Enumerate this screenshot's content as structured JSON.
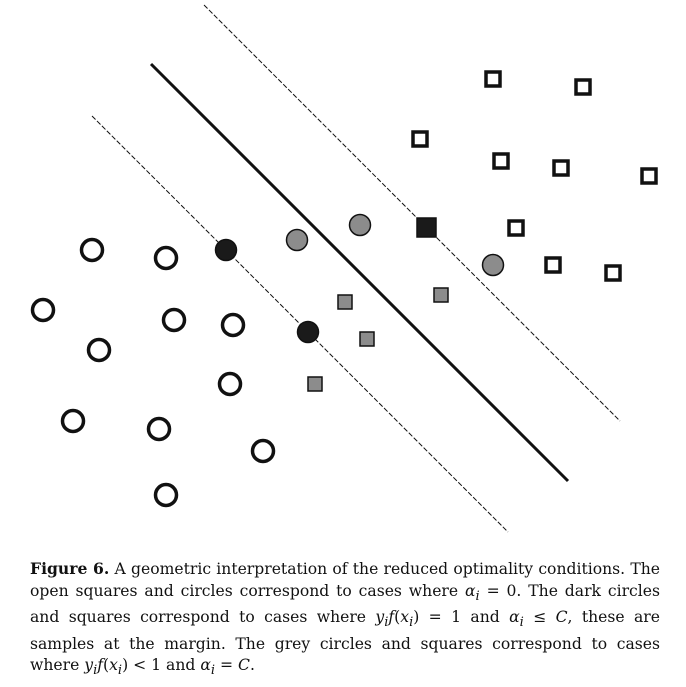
{
  "figure": {
    "colors": {
      "open": "#ffffff",
      "stroke": "#111111",
      "dark": "#1a1a1a",
      "grey": "#8c8c8c"
    },
    "legend_semantics": {
      "open": "alpha_i = 0",
      "dark": "margin samples, y_i f(x_i) = 1",
      "grey": "y_i f(x_i) < 1, alpha_i = C"
    }
  },
  "caption": {
    "label": "Figure 6.",
    "s1": " A geometric interpretation of the reduced optimality conditions. The open squares and circles correspond to cases where ",
    "m1": "α",
    "m1sub": "i",
    "s2": " = 0. The dark circles and squares correspond to cases where ",
    "m2": "y",
    "m2sub": "i",
    "m2b": "f",
    "m2c": "(",
    "m2d": "x",
    "m2dsub": "i",
    "m2e": ") = 1 and ",
    "m3": "α",
    "m3sub": "i",
    "m3b": " ≤ ",
    "m3c": "C",
    "s3": ", these are samples at the margin. The grey circles and squares correspond to cases where ",
    "m4": "y",
    "m4sub": "i",
    "m4b": "f",
    "m4c": "(",
    "m4d": "x",
    "m4dsub": "i",
    "m4e": ") < 1 and ",
    "m5": "α",
    "m5sub": "i",
    "m5b": " = ",
    "m5c": "C",
    "s4": "."
  }
}
